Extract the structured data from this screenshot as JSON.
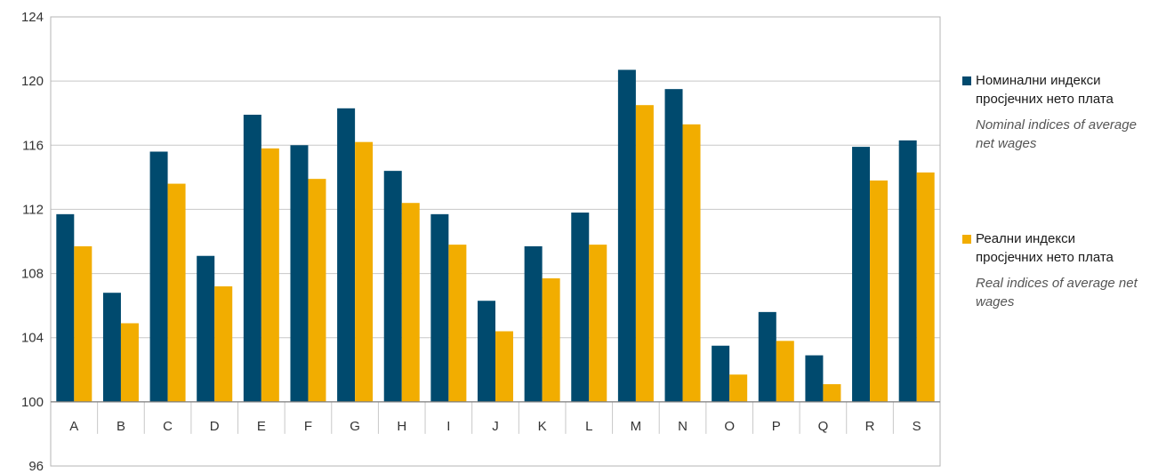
{
  "chart_data": {
    "type": "bar",
    "categories": [
      "A",
      "B",
      "C",
      "D",
      "E",
      "F",
      "G",
      "H",
      "I",
      "J",
      "K",
      "L",
      "M",
      "N",
      "O",
      "P",
      "Q",
      "R",
      "S"
    ],
    "series": [
      {
        "name": "Номинални индекси просјечних нето плата",
        "name_en": "Nominal indices of average net wages",
        "color": "#004a6e",
        "values": [
          111.7,
          106.8,
          115.6,
          109.1,
          117.9,
          116.0,
          118.3,
          114.4,
          111.7,
          106.3,
          109.7,
          111.8,
          120.7,
          119.5,
          103.5,
          105.6,
          102.9,
          115.9,
          116.3
        ]
      },
      {
        "name": "Реални индекси просјечних нето плата",
        "name_en": "Real indices of average net wages",
        "color": "#f2ad00",
        "values": [
          109.7,
          104.9,
          113.6,
          107.2,
          115.8,
          113.9,
          116.2,
          112.4,
          109.8,
          104.4,
          107.7,
          109.8,
          118.5,
          117.3,
          101.7,
          103.8,
          101.1,
          113.8,
          114.3
        ]
      }
    ],
    "ylim": [
      96,
      124
    ],
    "yticks": [
      "96",
      "100",
      "104",
      "108",
      "112",
      "116",
      "120",
      "124"
    ],
    "baseline": 100,
    "grid": true,
    "legend_position": "right",
    "title": "",
    "xlabel": "",
    "ylabel": ""
  }
}
